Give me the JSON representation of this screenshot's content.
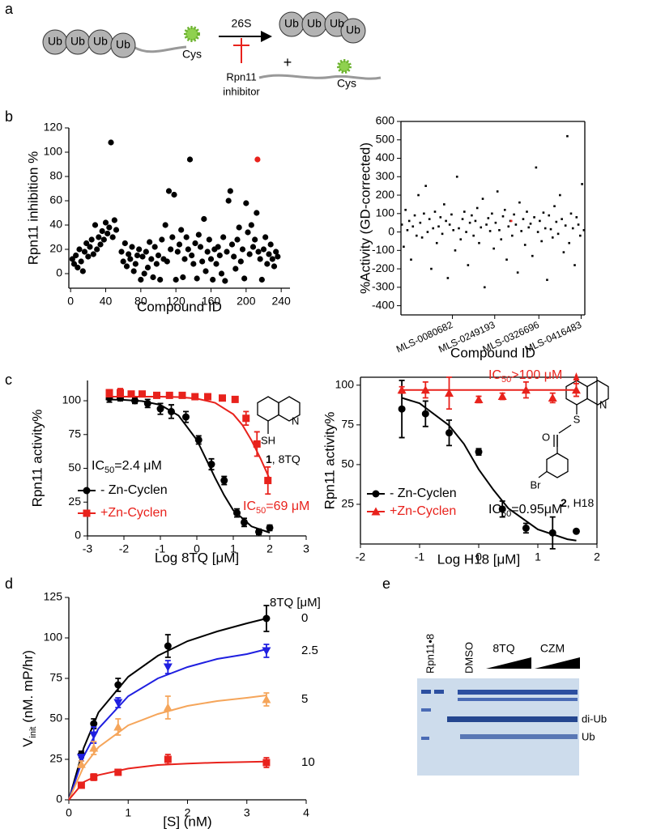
{
  "panels": [
    "a",
    "b",
    "c",
    "d",
    "e"
  ],
  "schematic": {
    "ub": "Ub",
    "cys": "Cys",
    "enzyme": "26S",
    "plus": "+",
    "inhibitor": [
      "Rpn11",
      "inhibitor"
    ]
  },
  "structures": [
    {
      "atoms": [
        "SH",
        "N"
      ],
      "compound": "1",
      "name": ", 8TQ"
    },
    {
      "atoms": [
        "S",
        "O",
        "Br",
        "N"
      ],
      "compound": "2",
      "name": ", H18"
    }
  ],
  "gel": {
    "lanes": [
      "Rpn11•8",
      "DMSO",
      "8TQ",
      "CZM"
    ],
    "bands": [
      "di-Ub",
      "Ub"
    ]
  },
  "chart_data": [
    {
      "type": "scatter",
      "xlabel": "Compound ID",
      "ylabel": "Rpn11 inhibition %",
      "xlim": [
        -2,
        250
      ],
      "ylim": [
        -12,
        120
      ],
      "xticks": [
        0,
        40,
        80,
        120,
        160,
        200,
        240
      ],
      "yticks": [
        0,
        20,
        40,
        60,
        80,
        100,
        120
      ],
      "series": [
        {
          "color": "#000000",
          "marker": "circle",
          "x": [
            2,
            4,
            6,
            8,
            10,
            12,
            14,
            16,
            18,
            20,
            22,
            24,
            26,
            28,
            30,
            32,
            34,
            36,
            38,
            40,
            42,
            44,
            46,
            48,
            50,
            52,
            58,
            60,
            62,
            64,
            66,
            68,
            70,
            72,
            74,
            76,
            78,
            80,
            82,
            84,
            86,
            88,
            90,
            92,
            94,
            96,
            98,
            100,
            102,
            104,
            106,
            108,
            110,
            112,
            114,
            116,
            118,
            120,
            122,
            124,
            126,
            128,
            130,
            132,
            134,
            136,
            138,
            140,
            142,
            144,
            146,
            148,
            150,
            152,
            154,
            156,
            158,
            160,
            162,
            164,
            166,
            168,
            170,
            172,
            174,
            176,
            178,
            180,
            182,
            184,
            186,
            188,
            190,
            192,
            194,
            196,
            198,
            200,
            202,
            204,
            206,
            208,
            210,
            212,
            214,
            216,
            218,
            220,
            222,
            224,
            226,
            228,
            230,
            232,
            234,
            236
          ],
          "values": [
            12,
            8,
            15,
            5,
            20,
            10,
            2,
            18,
            25,
            14,
            22,
            28,
            16,
            40,
            20,
            30,
            24,
            35,
            28,
            42,
            33,
            38,
            108,
            30,
            44,
            36,
            18,
            10,
            25,
            6,
            16,
            12,
            22,
            2,
            8,
            15,
            20,
            -5,
            14,
            0,
            18,
            5,
            26,
            12,
            -3,
            22,
            8,
            15,
            -5,
            28,
            12,
            40,
            10,
            68,
            20,
            30,
            65,
            -5,
            18,
            24,
            36,
            -3,
            12,
            30,
            20,
            94,
            15,
            8,
            25,
            -4,
            32,
            22,
            10,
            45,
            2,
            18,
            28,
            12,
            -5,
            20,
            8,
            22,
            15,
            0,
            30,
            -6,
            18,
            60,
            68,
            24,
            14,
            4,
            28,
            38,
            10,
            20,
            -4,
            58,
            34,
            16,
            40,
            22,
            28,
            50,
            18,
            12,
            -5,
            20,
            30,
            8,
            16,
            24,
            12,
            6,
            18,
            14
          ]
        },
        {
          "color": "#e8221c",
          "marker": "circle",
          "x": [
            213
          ],
          "values": [
            94
          ]
        }
      ]
    },
    {
      "type": "scatter",
      "xlabel": "Compound ID",
      "ylabel": "%Activity (GD-corrected)",
      "xlim": [
        0,
        1000
      ],
      "ylim": [
        -450,
        600
      ],
      "xticks": [
        {
          "value": 280,
          "label": "MLS-0080682"
        },
        {
          "value": 510,
          "label": "MLS-0249193"
        },
        {
          "value": 750,
          "label": "MLS-0326696"
        },
        {
          "value": 980,
          "label": "MLS-0416483"
        }
      ],
      "yticks": [
        -400,
        -300,
        -200,
        -100,
        0,
        100,
        200,
        300,
        400,
        500,
        600
      ],
      "series": [
        {
          "color": "#000000",
          "marker": "dot",
          "x": [
            5,
            15,
            25,
            35,
            45,
            55,
            65,
            75,
            85,
            95,
            105,
            115,
            125,
            135,
            145,
            155,
            165,
            175,
            185,
            195,
            205,
            215,
            225,
            235,
            245,
            255,
            265,
            275,
            285,
            295,
            305,
            315,
            325,
            335,
            345,
            355,
            365,
            375,
            385,
            395,
            405,
            415,
            425,
            435,
            445,
            455,
            465,
            475,
            485,
            495,
            505,
            515,
            525,
            535,
            545,
            555,
            565,
            575,
            585,
            595,
            605,
            615,
            625,
            635,
            645,
            655,
            665,
            675,
            685,
            695,
            705,
            715,
            725,
            735,
            745,
            755,
            765,
            775,
            785,
            795,
            805,
            815,
            825,
            835,
            845,
            855,
            865,
            875,
            885,
            895,
            905,
            915,
            925,
            935,
            945,
            955,
            965,
            975,
            985,
            995
          ],
          "values": [
            40,
            -80,
            120,
            10,
            60,
            -150,
            30,
            90,
            -20,
            200,
            50,
            -30,
            100,
            250,
            0,
            70,
            -200,
            20,
            110,
            -60,
            30,
            80,
            -10,
            150,
            60,
            -250,
            40,
            95,
            10,
            -100,
            300,
            20,
            -40,
            70,
            110,
            0,
            -180,
            50,
            90,
            -20,
            60,
            130,
            -60,
            25,
            180,
            -300,
            40,
            75,
            5,
            100,
            -90,
            50,
            220,
            10,
            -40,
            85,
            120,
            -150,
            30,
            60,
            -20,
            95,
            40,
            -220,
            160,
            5,
            70,
            -70,
            110,
            25,
            45,
            -130,
            80,
            350,
            0,
            60,
            -50,
            105,
            20,
            -260,
            90,
            15,
            -30,
            140,
            55,
            -10,
            200,
            70,
            -110,
            35,
            520,
            -60,
            100,
            20,
            -180,
            80,
            40,
            -20,
            260,
            10
          ]
        },
        {
          "color": "#e8221c",
          "marker": "dot",
          "x": [
            600
          ],
          "values": [
            60
          ]
        }
      ]
    },
    {
      "type": "line",
      "xlabel": "Log 8TQ [μM]",
      "ylabel": "Rpn11 activity%",
      "xlim": [
        -3,
        3
      ],
      "ylim": [
        0,
        115
      ],
      "xticks": [
        -3,
        -2,
        -1,
        0,
        1,
        2,
        3
      ],
      "yticks": [
        0,
        25,
        50,
        75,
        100
      ],
      "annotations": [
        {
          "text": "IC",
          "sub": "50",
          "tail": "=2.4 μM",
          "color": "#000000"
        },
        {
          "text": "IC",
          "sub": "50",
          "tail": "=69 μM",
          "color": "#e8221c"
        }
      ],
      "series": [
        {
          "name": "- Zn-Cyclen",
          "color": "#000000",
          "marker": "circle",
          "x": [
            -2.4,
            -2.1,
            -1.7,
            -1.35,
            -1.0,
            -0.7,
            -0.3,
            0.05,
            0.4,
            0.75,
            1.1,
            1.3,
            1.7,
            2.0
          ],
          "values": [
            102,
            102,
            100,
            98,
            94,
            92,
            88,
            71,
            53,
            41,
            17,
            10,
            3,
            6
          ],
          "errors": [
            3,
            2,
            2,
            3,
            4,
            5,
            4,
            3,
            4,
            3,
            3,
            3,
            2,
            2
          ],
          "fit": {
            "x": [
              -2.5,
              -2,
              -1.5,
              -1,
              -0.5,
              0,
              0.25,
              0.5,
              0.75,
              1,
              1.5,
              2
            ],
            "values": [
              101,
              100.6,
              99.7,
              97,
              89,
              71,
              57,
              43,
              30,
              19,
              7,
              2.4
            ]
          }
        },
        {
          "name": "+Zn-Cyclen",
          "color": "#e8221c",
          "marker": "square",
          "x": [
            -2.4,
            -2.1,
            -1.8,
            -1.5,
            -1.1,
            -0.75,
            -0.4,
            -0.05,
            0.3,
            0.7,
            1.05,
            1.35,
            1.65,
            1.95
          ],
          "values": [
            106,
            106,
            105,
            105,
            104,
            104,
            104,
            103,
            103,
            102,
            101,
            87,
            68,
            41
          ],
          "errors": [
            2,
            3,
            2,
            2,
            2,
            2,
            2,
            2,
            2,
            2,
            2,
            5,
            9,
            10
          ],
          "fit": {
            "x": [
              -2.5,
              -2,
              -1.5,
              -1,
              -0.5,
              0,
              0.5,
              1,
              1.25,
              1.5,
              1.75,
              2
            ],
            "values": [
              103,
              103,
              103,
              103,
              102.7,
              101.6,
              98.5,
              90,
              82,
              70.7,
              57,
              42
            ]
          }
        }
      ]
    },
    {
      "type": "line",
      "xlabel": "Log H18 [μM]",
      "ylabel": "Rpn11 activity%",
      "xlim": [
        -2,
        2
      ],
      "ylim": [
        0,
        105
      ],
      "xticks": [
        -2,
        -1,
        0,
        1,
        2
      ],
      "yticks": [
        25,
        50,
        75,
        100
      ],
      "annotations": [
        {
          "text": "IC",
          "sub": "50",
          "tail": ">100 μM",
          "color": "#e8221c"
        },
        {
          "text": "IC",
          "sub": "50",
          "tail": "=0.95μM",
          "color": "#000000"
        }
      ],
      "series": [
        {
          "name": "- Zn-Cyclen",
          "color": "#000000",
          "marker": "circle",
          "x": [
            -1.3,
            -0.9,
            -0.5,
            0.0,
            0.4,
            0.8,
            1.25,
            1.65
          ],
          "values": [
            85,
            82,
            70,
            58,
            22,
            10,
            7,
            8
          ],
          "errors": [
            18,
            8,
            8,
            2,
            5,
            3,
            10,
            null
          ],
          "fit": {
            "x": [
              -1.3,
              -1,
              -0.5,
              -0.25,
              0,
              0.25,
              0.5,
              1,
              1.5,
              1.65
            ],
            "values": [
              92,
              88.6,
              74.6,
              63,
              47,
              34,
              22.5,
              9.2,
              3,
              2.2
            ]
          }
        },
        {
          "name": "+Zn-Cyclen",
          "color": "#e8221c",
          "marker": "triangle",
          "x": [
            -1.3,
            -0.9,
            -0.5,
            0.0,
            0.4,
            0.8,
            1.25,
            1.65
          ],
          "values": [
            97,
            97,
            95,
            91,
            93,
            97,
            92,
            97
          ],
          "errors": [
            2,
            5,
            10,
            2,
            2,
            5,
            3,
            4
          ],
          "fit": {
            "x": [
              -1.3,
              1.65
            ],
            "values": [
              97,
              97
            ]
          }
        }
      ]
    },
    {
      "type": "line",
      "xlabel": "[S] (nM)",
      "ylabel": {
        "text": "V",
        "sub": "init",
        "tail": " (nM. mP/hr)"
      },
      "legend_title": "8TQ [μM]",
      "xlim": [
        0,
        4
      ],
      "ylim": [
        0,
        125
      ],
      "xticks": [
        0,
        1,
        2,
        3,
        4
      ],
      "yticks": [
        0,
        25,
        50,
        75,
        100,
        125
      ],
      "series": [
        {
          "name": "0",
          "color": "#000000",
          "marker": "circle",
          "x": [
            0.21,
            0.42,
            0.83,
            1.67,
            3.33
          ],
          "values": [
            28,
            47,
            71,
            95,
            112
          ],
          "errors": [
            2,
            3,
            4,
            7,
            8
          ],
          "fit": {
            "x": [
              0,
              0.25,
              0.5,
              1,
              1.5,
              2,
              2.5,
              3,
              3.33
            ],
            "values": [
              0,
              32,
              54,
              76,
              89,
              98,
              104,
              109,
              112
            ]
          }
        },
        {
          "name": "2.5",
          "color": "#1f1fe0",
          "marker": "triangle-down",
          "x": [
            0.21,
            0.42,
            0.83,
            1.67,
            3.33
          ],
          "values": [
            26,
            40,
            60,
            82,
            92
          ],
          "errors": [
            2,
            5,
            3,
            4,
            4
          ],
          "fit": {
            "x": [
              0,
              0.25,
              0.5,
              1,
              1.5,
              2,
              2.5,
              3,
              3.33
            ],
            "values": [
              0,
              27,
              44,
              64,
              75,
              82,
              87,
              90,
              93
            ]
          }
        },
        {
          "name": "5",
          "color": "#f5a55a",
          "marker": "triangle",
          "x": [
            0.21,
            0.42,
            0.83,
            1.67,
            3.33
          ],
          "values": [
            22,
            32,
            45,
            57,
            62
          ],
          "errors": [
            2,
            4,
            5,
            7,
            4
          ],
          "fit": {
            "x": [
              0,
              0.25,
              0.5,
              1,
              1.5,
              2,
              2.5,
              3,
              3.33
            ],
            "values": [
              0,
              20.6,
              32.5,
              46,
              53,
              58,
              61,
              63,
              64.5
            ]
          }
        },
        {
          "name": "10",
          "color": "#e8221c",
          "marker": "square",
          "x": [
            0.21,
            0.42,
            0.83,
            1.67,
            3.33
          ],
          "values": [
            9,
            14,
            17,
            25,
            23
          ],
          "errors": [
            1,
            2,
            1,
            3,
            3
          ],
          "fit": {
            "x": [
              0,
              0.25,
              0.5,
              1,
              1.5,
              2,
              2.5,
              3,
              3.33
            ],
            "values": [
              0,
              11,
              15.3,
              19.3,
              21.5,
              22.4,
              23,
              23.4,
              23.6
            ]
          }
        }
      ]
    }
  ]
}
